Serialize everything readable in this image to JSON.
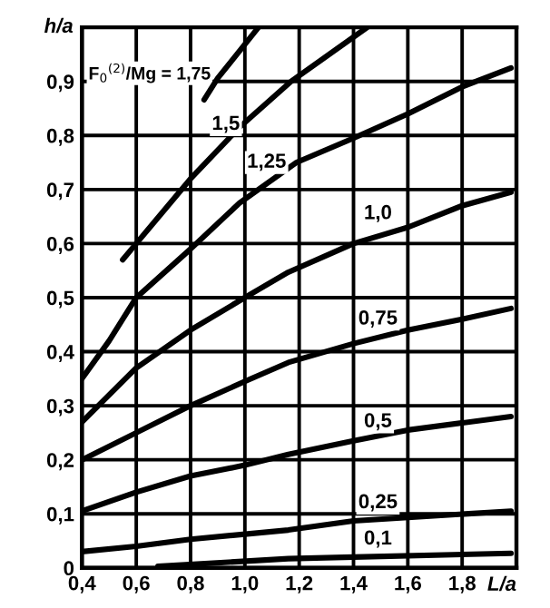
{
  "chart_data": {
    "type": "line",
    "xlabel": "L/a",
    "ylabel": "h/a",
    "xlim": [
      0.4,
      2.0
    ],
    "ylim": [
      0,
      1.0
    ],
    "xticks": [
      {
        "value": 0.4,
        "label": "0,4"
      },
      {
        "value": 0.6,
        "label": "0,6"
      },
      {
        "value": 0.8,
        "label": "0,8"
      },
      {
        "value": 1.0,
        "label": "1,0"
      },
      {
        "value": 1.2,
        "label": "1,2"
      },
      {
        "value": 1.4,
        "label": "1,4"
      },
      {
        "value": 1.6,
        "label": "1,6"
      },
      {
        "value": 1.8,
        "label": "1,8"
      }
    ],
    "yticks": [
      0,
      {
        "value": 0.1,
        "label": "0,1"
      },
      {
        "value": 0.2,
        "label": "0,2"
      },
      {
        "value": 0.3,
        "label": "0,3"
      },
      {
        "value": 0.4,
        "label": "0,4"
      },
      {
        "value": 0.5,
        "label": "0,5"
      },
      {
        "value": 0.6,
        "label": "0,6"
      },
      {
        "value": 0.7,
        "label": "0,7"
      },
      {
        "value": 0.8,
        "label": "0,8"
      },
      {
        "value": 0.9,
        "label": "0,9"
      }
    ],
    "grid": true,
    "marker": "none",
    "line_style": "solid",
    "series": [
      {
        "color": "#000000",
        "x": [
          0.85,
          0.9,
          1.05
        ],
        "values": [
          0.866,
          0.906,
          1.0
        ]
      },
      {
        "color": "#000000",
        "x": [
          0.55,
          0.6,
          0.8,
          0.98,
          1.17,
          1.45
        ],
        "values": [
          0.57,
          0.6,
          0.72,
          0.815,
          0.9,
          1.0
        ]
      },
      {
        "color": "#000000",
        "x": [
          0.4,
          0.5,
          0.6,
          0.8,
          0.98,
          1.19,
          1.4,
          1.6,
          1.8,
          1.98
        ],
        "values": [
          0.35,
          0.42,
          0.5,
          0.59,
          0.675,
          0.75,
          0.795,
          0.84,
          0.89,
          0.925
        ]
      },
      {
        "color": "#000000",
        "x": [
          0.4,
          0.6,
          0.8,
          1.0,
          1.16,
          1.4,
          1.6,
          1.8,
          1.98
        ],
        "values": [
          0.27,
          0.37,
          0.44,
          0.5,
          0.547,
          0.6,
          0.63,
          0.67,
          0.695
        ]
      },
      {
        "color": "#000000",
        "x": [
          0.4,
          0.6,
          0.8,
          1.0,
          1.16,
          1.4,
          1.6,
          1.8,
          1.98
        ],
        "values": [
          0.2,
          0.25,
          0.3,
          0.345,
          0.38,
          0.415,
          0.44,
          0.46,
          0.48
        ]
      },
      {
        "color": "#000000",
        "x": [
          0.4,
          0.6,
          0.8,
          1.0,
          1.16,
          1.4,
          1.6,
          1.98
        ],
        "values": [
          0.105,
          0.14,
          0.17,
          0.19,
          0.21,
          0.235,
          0.255,
          0.28
        ]
      },
      {
        "color": "#000000",
        "x": [
          0.4,
          0.6,
          0.8,
          1.16,
          1.4,
          1.98
        ],
        "values": [
          0.03,
          0.04,
          0.053,
          0.07,
          0.087,
          0.105
        ]
      },
      {
        "color": "#000000",
        "x": [
          0.68,
          1.16,
          1.4,
          1.98
        ],
        "values": [
          0.003,
          0.017,
          0.02,
          0.027
        ]
      }
    ],
    "annotations": [
      "F$_{0}$$^{(2)}$/Mg = 1,75",
      {
        "text": "1,5",
        "x": 0.93,
        "y": 0.82
      },
      {
        "text": "1,25",
        "x": 1.08,
        "y": 0.75
      },
      {
        "text": "1,0",
        "x": 1.49,
        "y": 0.655
      },
      {
        "text": "0,75",
        "x": 1.49,
        "y": 0.46
      },
      {
        "text": "0,5",
        "x": 1.49,
        "y": 0.27
      },
      {
        "text": "0,25",
        "x": 1.49,
        "y": 0.12
      },
      {
        "text": "0,1",
        "x": 1.49,
        "y": 0.053
      }
    ]
  }
}
